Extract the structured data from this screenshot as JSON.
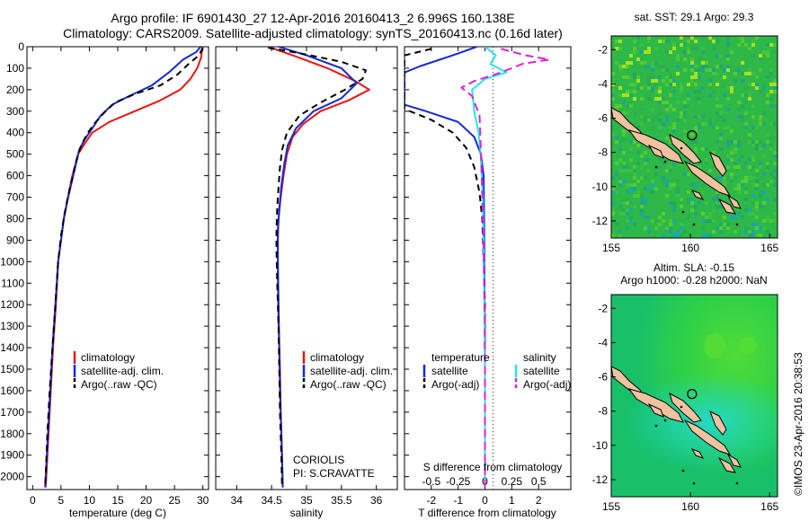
{
  "header": {
    "line1": "Argo profile: IF 6901430_27 12-Apr-2016 20160413_2 6.996S 160.138E",
    "line2": "Climatology: CARS2009. Satellite-adjusted climatology: synTS_20160413.nc (0.16d later)"
  },
  "colors": {
    "climatology": "#e8150f",
    "satellite": "#1428d8",
    "argo": "#000000",
    "sat_salinity": "#22e6f0",
    "argo_salinity": "#e020d8"
  },
  "chart_data": [
    {
      "type": "line",
      "xlabel": "temperature (deg C)",
      "ylabel": "",
      "xlim": [
        -1,
        31
      ],
      "ylim": [
        2060,
        0
      ],
      "xticks": [
        0,
        5,
        10,
        15,
        20,
        25,
        30
      ],
      "yticks": [
        0,
        100,
        200,
        300,
        400,
        500,
        600,
        700,
        800,
        900,
        1000,
        1100,
        1200,
        1300,
        1400,
        1500,
        1600,
        1700,
        1800,
        1900,
        2000
      ],
      "legend": [
        "climatology",
        "satellite-adj. clim.",
        "Argo(..raw -QC)"
      ],
      "series": [
        {
          "name": "climatology",
          "color": "#e8150f",
          "dash": "",
          "points": [
            [
              29.9,
              0
            ],
            [
              29.7,
              50
            ],
            [
              29.0,
              100
            ],
            [
              27.8,
              150
            ],
            [
              26.0,
              200
            ],
            [
              22.5,
              250
            ],
            [
              18.0,
              300
            ],
            [
              13.5,
              350
            ],
            [
              10.5,
              400
            ],
            [
              9.2,
              450
            ],
            [
              8.0,
              500
            ],
            [
              7.0,
              600
            ],
            [
              6.2,
              700
            ],
            [
              5.5,
              800
            ],
            [
              5.0,
              900
            ],
            [
              4.5,
              1000
            ],
            [
              4.1,
              1200
            ],
            [
              3.6,
              1400
            ],
            [
              3.2,
              1600
            ],
            [
              2.8,
              1800
            ],
            [
              2.4,
              2000
            ],
            [
              2.3,
              2050
            ]
          ]
        },
        {
          "name": "satellite-adj. clim.",
          "color": "#1428d8",
          "dash": "",
          "points": [
            [
              29.6,
              0
            ],
            [
              28.8,
              25
            ],
            [
              26.5,
              60
            ],
            [
              24.0,
              120
            ],
            [
              21.0,
              180
            ],
            [
              17.0,
              230
            ],
            [
              14.0,
              270
            ],
            [
              12.0,
              320
            ],
            [
              10.5,
              380
            ],
            [
              9.2,
              430
            ],
            [
              8.2,
              480
            ],
            [
              7.5,
              560
            ],
            [
              6.8,
              640
            ],
            [
              6.1,
              720
            ],
            [
              5.5,
              800
            ],
            [
              5.0,
              900
            ],
            [
              4.5,
              1000
            ],
            [
              4.0,
              1200
            ],
            [
              3.5,
              1400
            ],
            [
              3.1,
              1600
            ],
            [
              2.7,
              1800
            ],
            [
              2.3,
              2000
            ],
            [
              2.2,
              2050
            ]
          ]
        },
        {
          "name": "Argo(..raw -QC)",
          "color": "#000000",
          "dash": "7,5",
          "points": [
            [
              30.0,
              5
            ],
            [
              29.3,
              40
            ],
            [
              27.5,
              80
            ],
            [
              25.5,
              130
            ],
            [
              22.5,
              180
            ],
            [
              18.0,
              220
            ],
            [
              14.5,
              260
            ],
            [
              12.5,
              310
            ],
            [
              10.8,
              360
            ],
            [
              9.5,
              410
            ],
            [
              8.4,
              470
            ],
            [
              7.6,
              540
            ],
            [
              6.9,
              620
            ],
            [
              6.2,
              700
            ],
            [
              5.6,
              780
            ],
            [
              5.0,
              880
            ],
            [
              4.5,
              1000
            ],
            [
              4.0,
              1200
            ],
            [
              3.5,
              1400
            ],
            [
              3.0,
              1600
            ],
            [
              2.6,
              1800
            ],
            [
              2.3,
              2000
            ],
            [
              2.2,
              2045
            ]
          ]
        }
      ]
    },
    {
      "type": "line",
      "xlabel": "salinity",
      "ylabel": "",
      "xlim": [
        33.7,
        36.3
      ],
      "ylim": [
        2060,
        0
      ],
      "xticks": [
        34,
        34.5,
        35,
        35.5,
        36
      ],
      "xticklabels": [
        "34",
        "34.5",
        "35",
        "35.5",
        "36"
      ],
      "legend": [
        "climatology",
        "satellite-adj. clim.",
        "Argo(..raw -QC)"
      ],
      "annotation": [
        "CORIOLIS",
        "PI: S.CRAVATTE"
      ],
      "series": [
        {
          "name": "climatology",
          "color": "#e8150f",
          "dash": "",
          "points": [
            [
              34.45,
              0
            ],
            [
              34.8,
              40
            ],
            [
              35.3,
              100
            ],
            [
              35.7,
              160
            ],
            [
              35.9,
              200
            ],
            [
              35.6,
              250
            ],
            [
              35.2,
              300
            ],
            [
              34.95,
              360
            ],
            [
              34.8,
              420
            ],
            [
              34.72,
              500
            ],
            [
              34.67,
              600
            ],
            [
              34.63,
              700
            ],
            [
              34.6,
              800
            ],
            [
              34.59,
              900
            ],
            [
              34.59,
              1100
            ],
            [
              34.6,
              1300
            ],
            [
              34.62,
              1500
            ],
            [
              34.63,
              1700
            ],
            [
              34.65,
              1900
            ],
            [
              34.66,
              2050
            ]
          ]
        },
        {
          "name": "satellite-adj. clim.",
          "color": "#1428d8",
          "dash": "",
          "points": [
            [
              34.6,
              0
            ],
            [
              35.0,
              40
            ],
            [
              35.5,
              100
            ],
            [
              35.72,
              170
            ],
            [
              35.5,
              240
            ],
            [
              35.1,
              300
            ],
            [
              34.85,
              380
            ],
            [
              34.73,
              460
            ],
            [
              34.68,
              550
            ],
            [
              34.64,
              650
            ],
            [
              34.61,
              750
            ],
            [
              34.59,
              850
            ],
            [
              34.59,
              1000
            ],
            [
              34.6,
              1200
            ],
            [
              34.61,
              1400
            ],
            [
              34.62,
              1600
            ],
            [
              34.64,
              1800
            ],
            [
              34.66,
              2050
            ]
          ]
        },
        {
          "name": "Argo(..raw -QC)",
          "color": "#000000",
          "dash": "7,5",
          "points": [
            [
              34.45,
              5
            ],
            [
              34.9,
              30
            ],
            [
              35.5,
              70
            ],
            [
              35.85,
              110
            ],
            [
              35.8,
              150
            ],
            [
              35.55,
              200
            ],
            [
              35.2,
              260
            ],
            [
              34.9,
              320
            ],
            [
              34.72,
              400
            ],
            [
              34.65,
              480
            ],
            [
              34.62,
              560
            ],
            [
              34.6,
              650
            ],
            [
              34.58,
              750
            ],
            [
              34.57,
              850
            ],
            [
              34.57,
              950
            ],
            [
              34.58,
              1100
            ],
            [
              34.6,
              1300
            ],
            [
              34.61,
              1500
            ],
            [
              34.62,
              1700
            ],
            [
              34.64,
              1900
            ],
            [
              34.65,
              2045
            ]
          ]
        }
      ]
    },
    {
      "type": "line",
      "xlabel": "T difference from climatology",
      "top_axis_label": "S difference from climatology",
      "xlim": [
        -3,
        3.2
      ],
      "xlim_salinity": [
        -0.75,
        0.8
      ],
      "ylim": [
        2060,
        0
      ],
      "xticks": [
        -2,
        -1,
        0,
        1,
        2
      ],
      "xticklabels": [
        "-2",
        "-1",
        "0",
        "1",
        "2"
      ],
      "top_ticklabels": [
        "-0.5",
        "-0.25",
        "0",
        "0.25",
        "0.5"
      ],
      "legend_temperature_title": "temperature",
      "legend_salinity_title": "salinity",
      "legend": [
        "satellite",
        "Argo(-adj)",
        "satellite",
        "Argo(-adj)"
      ],
      "series": [
        {
          "name": "satellite",
          "color": "#1428d8",
          "dash": "",
          "points": [
            [
              -0.3,
              0
            ],
            [
              -1.2,
              40
            ],
            [
              -2.4,
              90
            ],
            [
              -3.0,
              120
            ],
            [
              -3.0,
              270
            ],
            [
              -2.2,
              300
            ],
            [
              -1.0,
              350
            ],
            [
              -0.4,
              420
            ],
            [
              -0.15,
              500
            ],
            [
              -0.05,
              600
            ],
            [
              -0.03,
              800
            ],
            [
              -0.02,
              1000
            ],
            [
              0,
              1500
            ],
            [
              0,
              2050
            ]
          ]
        },
        {
          "name": "Argo(-adj)",
          "color": "#000000",
          "dash": "7,5",
          "points": [
            [
              -2.0,
              10
            ],
            [
              -3.0,
              40
            ],
            [
              -3.0,
              290
            ],
            [
              -2.0,
              340
            ],
            [
              -1.2,
              400
            ],
            [
              -0.7,
              470
            ],
            [
              -0.4,
              560
            ],
            [
              -0.2,
              680
            ],
            [
              -0.1,
              800
            ],
            [
              -0.05,
              1000
            ],
            [
              0,
              1200
            ],
            [
              0,
              2050
            ]
          ]
        },
        {
          "name": "satellite",
          "color": "#22e6f0",
          "dash": "",
          "points": [
            [
              0,
              0
            ],
            [
              0.1,
              40
            ],
            [
              0.05,
              80
            ],
            [
              0.2,
              120
            ],
            [
              0.0,
              150
            ],
            [
              -0.12,
              200
            ],
            [
              -0.1,
              300
            ],
            [
              -0.06,
              400
            ],
            [
              -0.04,
              500
            ],
            [
              -0.02,
              700
            ],
            [
              -0.01,
              1000
            ],
            [
              0,
              1500
            ],
            [
              0,
              2050
            ]
          ]
        },
        {
          "name": "Argo(-adj)",
          "color": "#e020d8",
          "dash": "9,5",
          "points": [
            [
              0.15,
              10
            ],
            [
              0.38,
              40
            ],
            [
              0.6,
              60
            ],
            [
              0.35,
              80
            ],
            [
              0.15,
              120
            ],
            [
              -0.1,
              160
            ],
            [
              -0.22,
              190
            ],
            [
              -0.12,
              230
            ],
            [
              -0.05,
              320
            ],
            [
              -0.04,
              450
            ],
            [
              -0.03,
              600
            ],
            [
              -0.02,
              800
            ],
            [
              -0.01,
              1000
            ],
            [
              0,
              1300
            ],
            [
              0,
              2050
            ]
          ]
        }
      ]
    }
  ],
  "map_sst": {
    "title": "sat. SST: 29.1  Argo: 29.3",
    "xticks": [
      "155",
      "160",
      "165"
    ],
    "yticks": [
      "-2",
      "-4",
      "-6",
      "-8",
      "-10",
      "-12"
    ],
    "marker": [
      160.1,
      -7.0
    ]
  },
  "map_sla": {
    "title_line1": "Altim. SLA: -0.15",
    "title_line2": "Argo h1000: -0.28 h2000: NaN",
    "xticks": [
      "155",
      "160",
      "165"
    ],
    "yticks": [
      "-2",
      "-4",
      "-6",
      "-8",
      "-10",
      "-12"
    ],
    "marker": [
      160.1,
      -7.0
    ]
  },
  "credit": "©IMOS 23-Apr-2016 20:38:53"
}
